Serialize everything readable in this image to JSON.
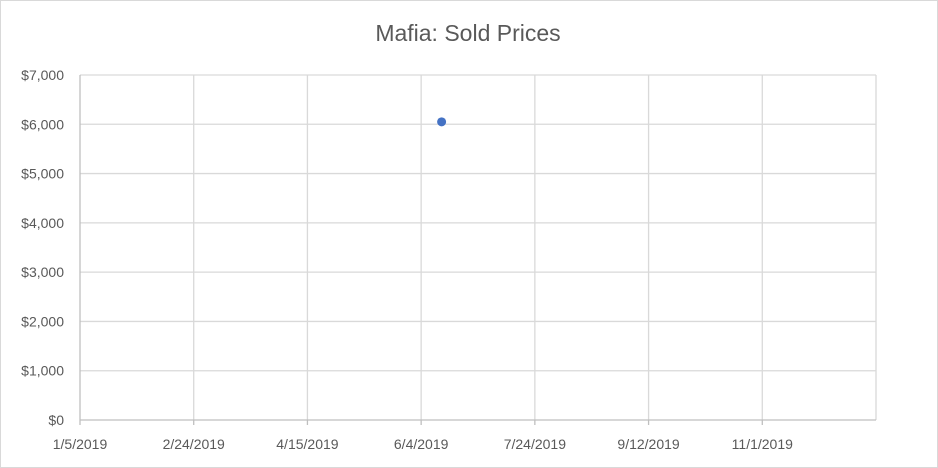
{
  "chart_data": {
    "type": "scatter",
    "title": "Mafia: Sold Prices",
    "xlabel": "",
    "ylabel": "",
    "x_type": "date",
    "xlim": [
      "2019-01-05",
      "2019-12-21"
    ],
    "ylim": [
      0,
      7000
    ],
    "x_ticks": [
      {
        "value": "2019-01-05",
        "label": "1/5/2019"
      },
      {
        "value": "2019-02-24",
        "label": "2/24/2019"
      },
      {
        "value": "2019-04-15",
        "label": "4/15/2019"
      },
      {
        "value": "2019-06-04",
        "label": "6/4/2019"
      },
      {
        "value": "2019-07-24",
        "label": "7/24/2019"
      },
      {
        "value": "2019-09-12",
        "label": "9/12/2019"
      },
      {
        "value": "2019-11-01",
        "label": "11/1/2019"
      }
    ],
    "y_ticks": [
      {
        "value": 0,
        "label": "$0"
      },
      {
        "value": 1000,
        "label": "$1,000"
      },
      {
        "value": 2000,
        "label": "$2,000"
      },
      {
        "value": 3000,
        "label": "$3,000"
      },
      {
        "value": 4000,
        "label": "$4,000"
      },
      {
        "value": 5000,
        "label": "$5,000"
      },
      {
        "value": 6000,
        "label": "$6,000"
      },
      {
        "value": 7000,
        "label": "$7,000"
      }
    ],
    "series": [
      {
        "color": "#4472c4",
        "points": [
          {
            "x": "2019-06-13",
            "y": 6050
          }
        ]
      }
    ],
    "grid": {
      "horizontal": true,
      "vertical": true
    },
    "legend": "none"
  }
}
